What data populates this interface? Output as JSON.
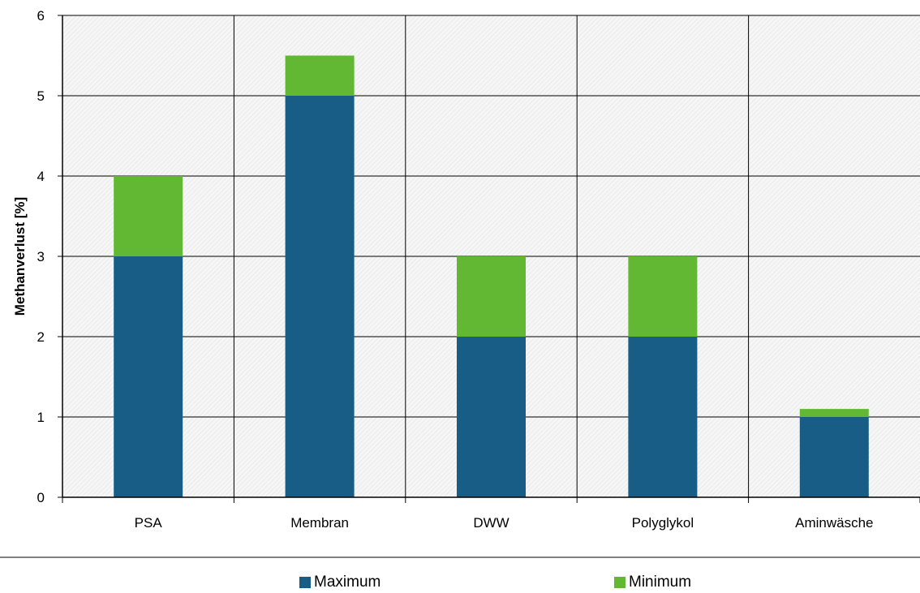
{
  "chart_data": {
    "type": "bar",
    "stacked": true,
    "title": "",
    "xlabel": "",
    "ylabel": "Methanverlust [%]",
    "ylim": [
      0,
      6
    ],
    "yticks": [
      "0",
      "1",
      "2",
      "3",
      "4",
      "5",
      "6"
    ],
    "categories": [
      "PSA",
      "Membran",
      "DWW",
      "Polyglykol",
      "Aminwäsche"
    ],
    "series": [
      {
        "name": "Maximum",
        "color": "#175d86",
        "values": [
          3,
          5,
          2,
          2,
          1
        ]
      },
      {
        "name": "Minimum",
        "color": "#62b832",
        "values": [
          1,
          0.5,
          1,
          1,
          0.1
        ]
      }
    ],
    "grid": true,
    "legend_position": "bottom"
  }
}
